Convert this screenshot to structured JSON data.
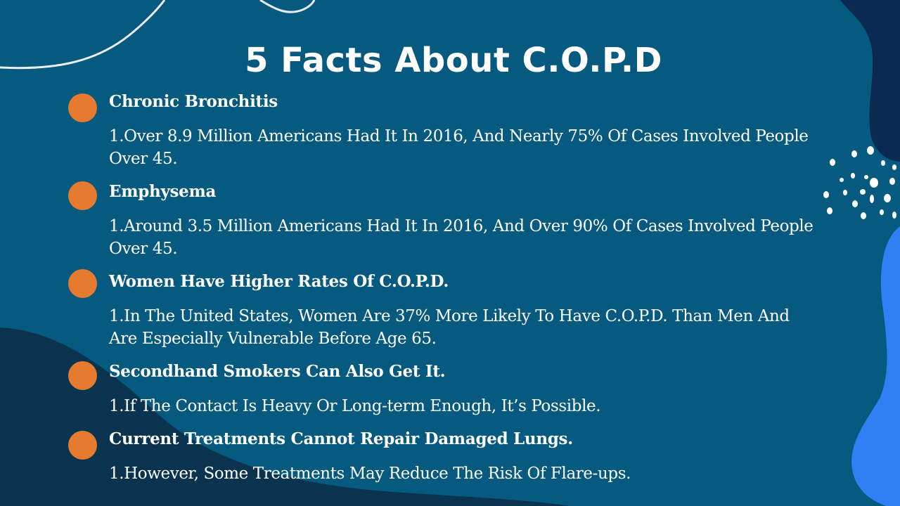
{
  "slide": {
    "title": "5 Facts About C.O.P.D"
  },
  "facts": [
    {
      "heading": "Chronic Bronchitis",
      "detail": "1.Over 8.9 Million Americans Had It In 2016, And Nearly 75% Of Cases Involved People Over 45."
    },
    {
      "heading": "Emphysema",
      "detail": "1.Around 3.5 Million Americans Had It In 2016, And Over 90% Of Cases Involved People Over 45."
    },
    {
      "heading": "Women Have Higher Rates Of C.O.P.D.",
      "detail": "1.In The United States, Women Are 37% More Likely To Have C.O.P.D. Than Men And Are Especially Vulnerable Before Age 65."
    },
    {
      "heading": "Secondhand Smokers Can Also Get It.",
      "detail": "1.If The Contact Is Heavy Or Long-term Enough, It’s Possible."
    },
    {
      "heading": "Current Treatments Cannot Repair Damaged Lungs.",
      "detail": "1.However, Some Treatments May Reduce The Risk Of Flare-ups."
    }
  ],
  "colors": {
    "background": "#06597f",
    "dark_blob": "#0a3350",
    "navy_blob": "#0b2a52",
    "bright_blob": "#2f7ff5",
    "bullet": "#e67a2e",
    "text": "#ffffff"
  }
}
